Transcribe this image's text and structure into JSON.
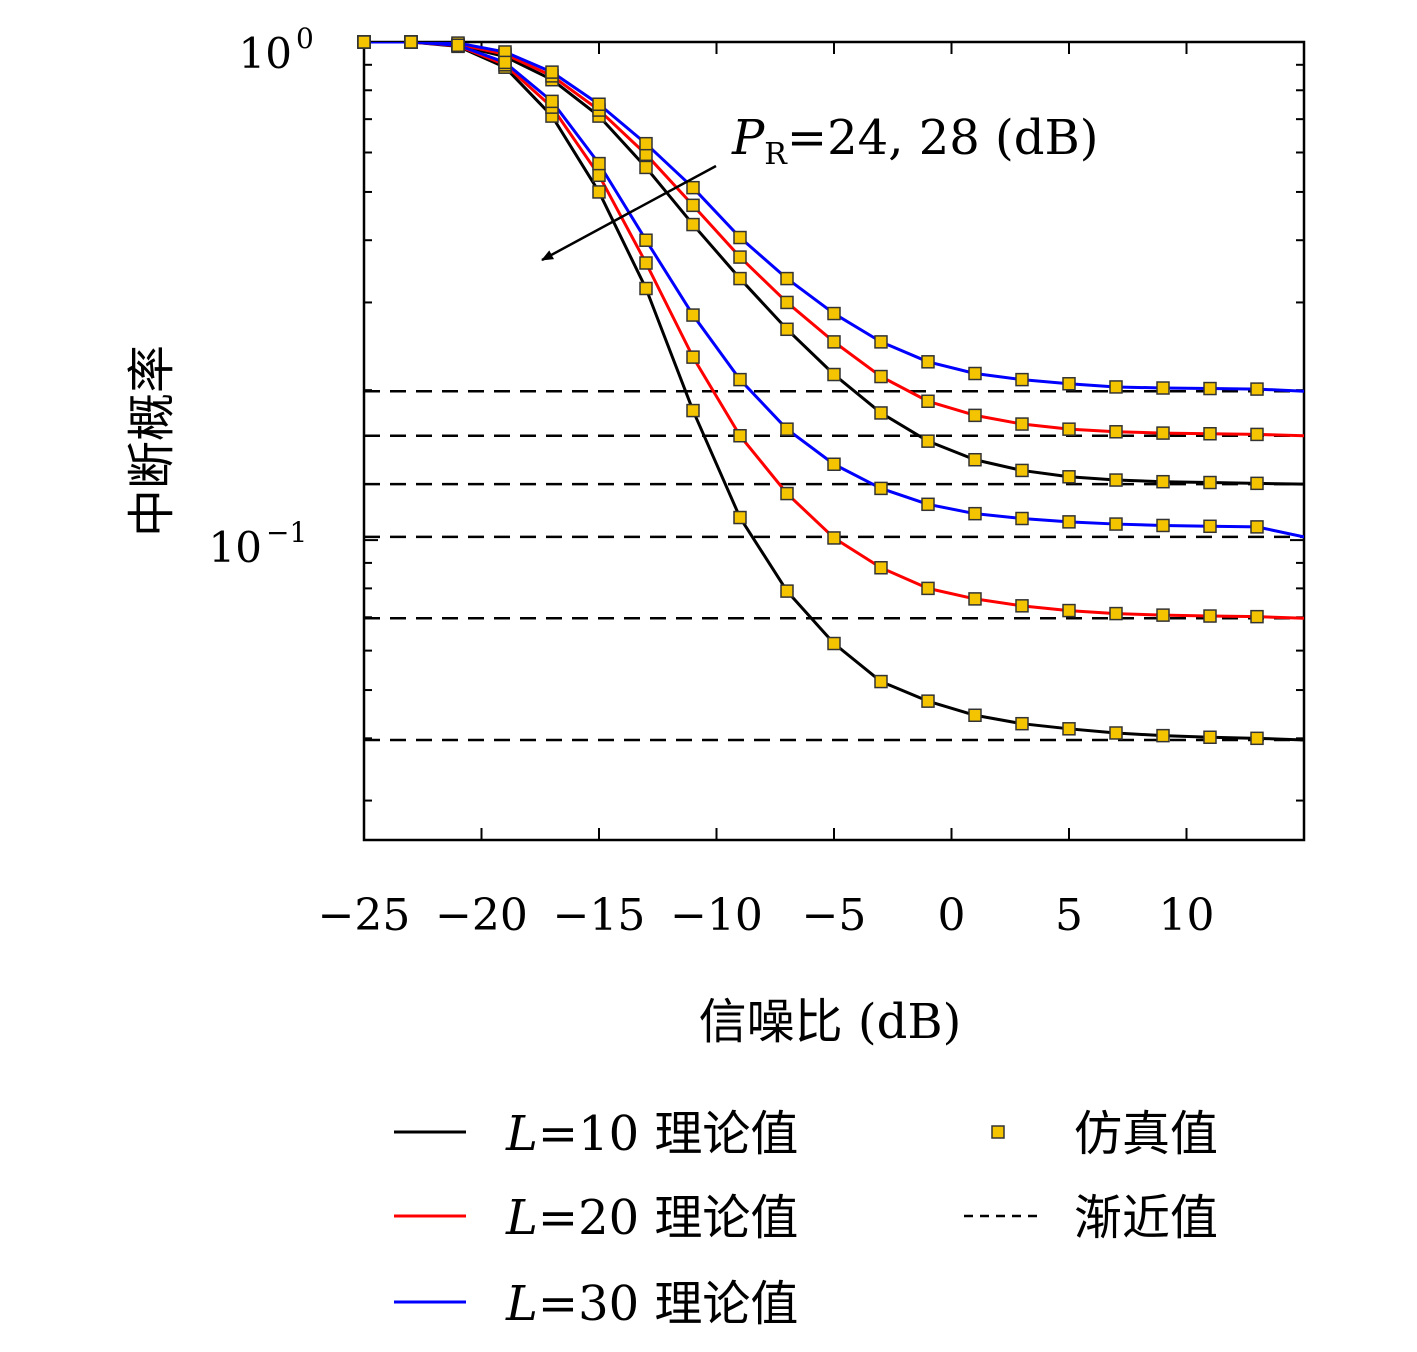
{
  "chart_data": {
    "type": "line",
    "xlabel": "信噪比 (dB)",
    "ylabel": "中断概率",
    "xlim": [
      -25,
      15
    ],
    "ylim": [
      0.025,
      1
    ],
    "yscale": "log",
    "xticks": [
      -25,
      -20,
      -15,
      -10,
      -5,
      0,
      5,
      10
    ],
    "xtick_labels": [
      "−25",
      "−20",
      "−15",
      "−10",
      "−5",
      "0",
      "5",
      "10"
    ],
    "yticks": [
      {
        "value": 1,
        "base": "10",
        "exp": "0"
      },
      {
        "value": 0.1,
        "base": "10",
        "exp": "−1"
      }
    ],
    "annotation": {
      "prefix": "P",
      "sub": "R",
      "rest": "=24, 28 (dB)"
    },
    "x": [
      -25,
      -23,
      -21,
      -19,
      -17,
      -15,
      -13,
      -11,
      -9,
      -7,
      -5,
      -3,
      -1,
      1,
      3,
      5,
      7,
      9,
      11,
      13
    ],
    "series": [
      {
        "name_prefix": "L",
        "name_rest": "=10 理论值",
        "color": "#000000",
        "group": "P_R=24",
        "values": [
          1.0,
          1.0,
          0.985,
          0.935,
          0.84,
          0.71,
          0.56,
          0.43,
          0.335,
          0.265,
          0.215,
          0.18,
          0.158,
          0.145,
          0.138,
          0.134,
          0.132,
          0.131,
          0.1305,
          0.13
        ]
      },
      {
        "name_prefix": "L",
        "name_rest": "=20 理论值",
        "color": "#ff0000",
        "group": "P_R=24",
        "values": [
          1.0,
          1.0,
          0.99,
          0.945,
          0.855,
          0.73,
          0.595,
          0.47,
          0.37,
          0.3,
          0.25,
          0.213,
          0.19,
          0.178,
          0.171,
          0.167,
          0.165,
          0.164,
          0.1635,
          0.163
        ]
      },
      {
        "name_prefix": "L",
        "name_rest": "=30 理论值",
        "color": "#0000ff",
        "group": "P_R=24",
        "values": [
          1.0,
          1.0,
          0.995,
          0.955,
          0.87,
          0.75,
          0.625,
          0.51,
          0.405,
          0.335,
          0.285,
          0.25,
          0.228,
          0.216,
          0.21,
          0.206,
          0.203,
          0.202,
          0.2015,
          0.201
        ]
      },
      {
        "name_prefix": "L",
        "name_rest": "=10 理论值",
        "color": "#000000",
        "group": "P_R=28",
        "values": [
          1.0,
          1.0,
          0.98,
          0.89,
          0.71,
          0.5,
          0.32,
          0.182,
          0.111,
          0.079,
          0.062,
          0.052,
          0.0475,
          0.0445,
          0.0428,
          0.0418,
          0.041,
          0.0405,
          0.0402,
          0.04
        ]
      },
      {
        "name_prefix": "L",
        "name_rest": "=20 理论值",
        "color": "#ff0000",
        "group": "P_R=28",
        "values": [
          1.0,
          1.0,
          0.983,
          0.9,
          0.74,
          0.54,
          0.36,
          0.233,
          0.162,
          0.124,
          0.101,
          0.088,
          0.08,
          0.0762,
          0.0738,
          0.0722,
          0.0712,
          0.0707,
          0.0704,
          0.0702
        ]
      },
      {
        "name_prefix": "L",
        "name_rest": "=30 理论值",
        "color": "#0000ff",
        "group": "P_R=28",
        "values": [
          1.0,
          1.0,
          0.985,
          0.91,
          0.76,
          0.57,
          0.4,
          0.283,
          0.21,
          0.167,
          0.142,
          0.127,
          0.118,
          0.113,
          0.1105,
          0.1088,
          0.1077,
          0.107,
          0.1066,
          0.1063
        ]
      }
    ],
    "asymptotes": [
      0.199,
      0.162,
      0.1295,
      0.1015,
      0.0697,
      0.0397
    ],
    "legend": {
      "placement": "bottom",
      "simulation_label": "仿真值",
      "asymptote_label": "渐近值"
    },
    "marker_color": "#f5c400"
  }
}
